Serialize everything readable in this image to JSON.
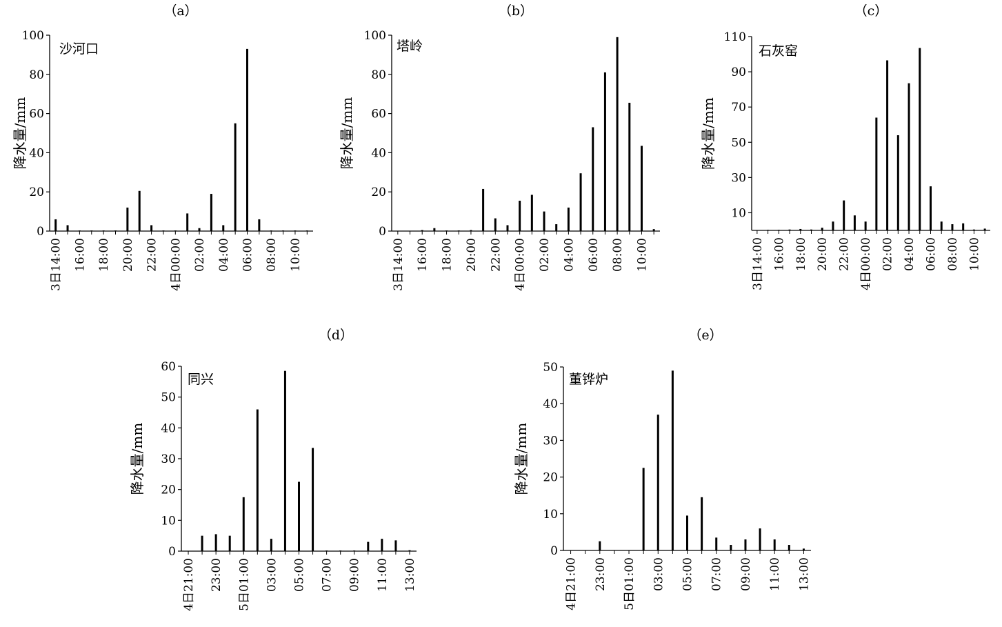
{
  "colors": {
    "bar": "#000000",
    "axis": "#000000",
    "background": "#ffffff"
  },
  "chart_data": [
    {
      "type": "bar",
      "title": "（a）",
      "station": "沙河口",
      "ylabel": "降水量/mm",
      "ylim": [
        0,
        100
      ],
      "yticks": [
        0,
        20,
        40,
        60,
        80,
        100
      ],
      "xtick_labels": [
        "3日14:00",
        "16:00",
        "18:00",
        "20:00",
        "22:00",
        "4日00:00",
        "02:00",
        "04:00",
        "06:00",
        "08:00",
        "10:00"
      ],
      "hours": [
        "14:00",
        "15:00",
        "16:00",
        "17:00",
        "18:00",
        "19:00",
        "20:00",
        "21:00",
        "22:00",
        "23:00",
        "00:00",
        "01:00",
        "02:00",
        "03:00",
        "04:00",
        "05:00",
        "06:00",
        "07:00",
        "08:00",
        "09:00",
        "10:00",
        "11:00"
      ],
      "values": [
        6,
        3,
        0.3,
        0.3,
        0.3,
        0.3,
        12,
        20.5,
        3,
        0.3,
        0.3,
        9,
        1.5,
        19,
        3,
        55,
        93,
        6,
        0.3,
        0.3,
        0.3,
        0.3
      ]
    },
    {
      "type": "bar",
      "title": "（b）",
      "station": "塔岭",
      "ylabel": "降水量/mm",
      "ylim": [
        0,
        100
      ],
      "yticks": [
        0,
        20,
        40,
        60,
        80,
        100
      ],
      "xtick_labels": [
        "3日14:00",
        "16:00",
        "18:00",
        "20:00",
        "22:00",
        "4日00:00",
        "02:00",
        "04:00",
        "06:00",
        "08:00",
        "10:00"
      ],
      "hours": [
        "14:00",
        "15:00",
        "16:00",
        "17:00",
        "18:00",
        "19:00",
        "20:00",
        "21:00",
        "22:00",
        "23:00",
        "00:00",
        "01:00",
        "02:00",
        "03:00",
        "04:00",
        "05:00",
        "06:00",
        "07:00",
        "08:00",
        "09:00",
        "10:00",
        "11:00"
      ],
      "values": [
        0,
        0,
        0.5,
        1.5,
        0.3,
        0.3,
        0.5,
        21.5,
        6.5,
        3,
        15.5,
        18.5,
        10,
        3.5,
        12,
        29.5,
        53,
        81,
        99,
        65.5,
        43.5,
        1
      ]
    },
    {
      "type": "bar",
      "title": "（c）",
      "station": "石灰窑",
      "ylabel": "降水量/mm",
      "ylim": [
        0,
        110
      ],
      "yticks": [
        10,
        30,
        50,
        70,
        90,
        110
      ],
      "xtick_labels": [
        "3日14:00",
        "16:00",
        "18:00",
        "20:00",
        "22:00",
        "4日00:00",
        "02:00",
        "04:00",
        "06:00",
        "08:00",
        "10:00"
      ],
      "hours": [
        "14:00",
        "15:00",
        "16:00",
        "17:00",
        "18:00",
        "19:00",
        "20:00",
        "21:00",
        "22:00",
        "23:00",
        "00:00",
        "01:00",
        "02:00",
        "03:00",
        "04:00",
        "05:00",
        "06:00",
        "07:00",
        "08:00",
        "09:00",
        "10:00",
        "11:00"
      ],
      "values": [
        0,
        0.3,
        0.3,
        0.5,
        0.8,
        0.5,
        1.5,
        5,
        17,
        8.5,
        5,
        64,
        96.5,
        54,
        83.5,
        103.5,
        25,
        5,
        3.5,
        4,
        0.5,
        1
      ]
    },
    {
      "type": "bar",
      "title": "（d）",
      "station": "同兴",
      "ylabel": "降水量/mm",
      "ylim": [
        0,
        60
      ],
      "yticks": [
        0,
        10,
        20,
        30,
        40,
        50,
        60
      ],
      "xtick_labels": [
        "4日21:00",
        "23:00",
        "5日01:00",
        "03:00",
        "05:00",
        "07:00",
        "09:00",
        "11:00",
        "13:00"
      ],
      "hours": [
        "21:00",
        "22:00",
        "23:00",
        "00:00",
        "01:00",
        "02:00",
        "03:00",
        "04:00",
        "05:00",
        "06:00",
        "07:00",
        "08:00",
        "09:00",
        "10:00",
        "11:00",
        "12:00",
        "13:00"
      ],
      "values": [
        0,
        5,
        5.5,
        5,
        17.5,
        46,
        4,
        58.5,
        22.5,
        33.5,
        0.2,
        0.2,
        0.2,
        3,
        4,
        3.5,
        0.3
      ]
    },
    {
      "type": "bar",
      "title": "（e）",
      "station": "董铧炉",
      "ylabel": "降水量/mm",
      "ylim": [
        0,
        50
      ],
      "yticks": [
        0,
        10,
        20,
        30,
        40,
        50
      ],
      "xtick_labels": [
        "4日21:00",
        "23:00",
        "5日01:00",
        "03:00",
        "05:00",
        "07:00",
        "09:00",
        "11:00",
        "13:00"
      ],
      "hours": [
        "21:00",
        "22:00",
        "23:00",
        "00:00",
        "01:00",
        "02:00",
        "03:00",
        "04:00",
        "05:00",
        "06:00",
        "07:00",
        "08:00",
        "09:00",
        "10:00",
        "11:00",
        "12:00",
        "13:00"
      ],
      "values": [
        0,
        0,
        2.5,
        0,
        0,
        22.5,
        37,
        49,
        9.5,
        14.5,
        3.5,
        1.5,
        3,
        6,
        3,
        1.5,
        0.5
      ]
    }
  ]
}
